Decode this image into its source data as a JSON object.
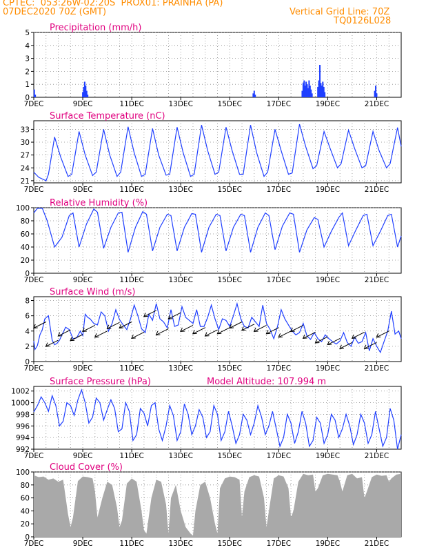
{
  "header": {
    "line1": "CPTEC:  053:26W-02:20S  PROX01: PRAINHA (PA)",
    "line2_left": "07DEC2020 70Z (GMT)",
    "line2_right": "Vertical Grid Line: 70Z",
    "line3_right": "TQ0126L028"
  },
  "colors": {
    "header": "#ff8c00",
    "title": "#e0007f",
    "series": "#1f3fff",
    "cloud": "#a9a9a9",
    "arrow": "#000000"
  },
  "x_axis": {
    "tick_labels": [
      "7DEC",
      "9DEC",
      "11DEC",
      "13DEC",
      "15DEC",
      "17DEC",
      "19DEC",
      "21DEC"
    ],
    "tick_days": [
      7,
      9,
      11,
      13,
      15,
      17,
      19,
      21
    ],
    "range_days": [
      7,
      22
    ]
  },
  "chart_data": [
    {
      "type": "bar",
      "title": "Precipitation  (mm/h)",
      "ylim": [
        0,
        5
      ],
      "yticks": [
        0,
        1,
        2,
        3,
        4,
        5
      ],
      "x_unit": "day of Dec 2020",
      "x": [
        7.02,
        7.06,
        9.0,
        9.04,
        9.08,
        9.12,
        9.16,
        9.2,
        15.96,
        16.0,
        16.04,
        17.96,
        18.0,
        18.04,
        18.08,
        18.12,
        18.16,
        18.2,
        18.24,
        18.28,
        18.32,
        18.36,
        18.6,
        18.64,
        18.68,
        18.72,
        18.76,
        18.8,
        18.84,
        18.88,
        20.92,
        20.96,
        21.0
      ],
      "values": [
        0.6,
        0.2,
        0.4,
        0.8,
        1.2,
        0.9,
        0.5,
        0.2,
        0.3,
        0.5,
        0.2,
        0.5,
        1.1,
        1.3,
        0.9,
        1.2,
        1.0,
        0.7,
        1.3,
        0.9,
        0.6,
        0.3,
        0.8,
        1.3,
        2.5,
        1.1,
        0.9,
        1.2,
        0.8,
        0.4,
        0.5,
        0.9,
        0.3
      ]
    },
    {
      "type": "line",
      "title": "Surface Temperature (nC)",
      "ylim": [
        20.5,
        35
      ],
      "yticks": [
        21,
        24,
        27,
        30,
        33
      ],
      "x_unit": "day of Dec 2020",
      "x": [
        7.0,
        7.2,
        7.5,
        7.6,
        7.85,
        8.1,
        8.4,
        8.55,
        8.85,
        9.1,
        9.4,
        9.55,
        9.85,
        10.1,
        10.4,
        10.55,
        10.85,
        11.1,
        11.4,
        11.55,
        11.85,
        12.1,
        12.4,
        12.55,
        12.85,
        13.1,
        13.4,
        13.55,
        13.85,
        14.1,
        14.4,
        14.55,
        14.85,
        15.1,
        15.4,
        15.55,
        15.85,
        16.1,
        16.4,
        16.55,
        16.85,
        17.1,
        17.4,
        17.55,
        17.85,
        18.1,
        18.4,
        18.55,
        18.85,
        19.1,
        19.4,
        19.55,
        19.85,
        20.1,
        20.4,
        20.55,
        20.85,
        21.1,
        21.4,
        21.55,
        21.85,
        22.0
      ],
      "values": [
        23.0,
        21.8,
        21.0,
        22.5,
        31.2,
        26.5,
        22.0,
        22.5,
        32.5,
        27.0,
        22.2,
        23.0,
        33.0,
        27.0,
        22.0,
        23.0,
        33.6,
        27.5,
        22.0,
        22.5,
        33.2,
        27.0,
        22.3,
        22.5,
        33.5,
        27.5,
        22.0,
        22.5,
        34.0,
        28.0,
        22.5,
        23.0,
        33.5,
        28.0,
        22.5,
        22.5,
        34.0,
        27.5,
        22.0,
        23.0,
        33.0,
        28.0,
        22.5,
        22.8,
        34.2,
        29.0,
        23.8,
        24.5,
        32.5,
        28.5,
        24.0,
        25.0,
        32.8,
        28.5,
        24.0,
        24.5,
        32.5,
        28.0,
        24.0,
        25.0,
        33.4,
        29.0
      ]
    },
    {
      "type": "line",
      "title": "Relative Humidity  (%)",
      "ylim": [
        0,
        100
      ],
      "yticks": [
        0,
        20,
        40,
        60,
        80,
        100
      ],
      "x_unit": "day of Dec 2020",
      "x": [
        7.0,
        7.15,
        7.35,
        7.55,
        7.85,
        8.15,
        8.45,
        8.6,
        8.85,
        9.15,
        9.45,
        9.6,
        9.85,
        10.15,
        10.45,
        10.6,
        10.85,
        11.15,
        11.45,
        11.6,
        11.85,
        12.15,
        12.45,
        12.6,
        12.85,
        13.15,
        13.45,
        13.6,
        13.85,
        14.15,
        14.45,
        14.6,
        14.85,
        15.15,
        15.45,
        15.6,
        15.85,
        16.15,
        16.45,
        16.6,
        16.85,
        17.15,
        17.45,
        17.6,
        17.85,
        18.15,
        18.45,
        18.6,
        18.85,
        19.15,
        19.45,
        19.6,
        19.85,
        20.15,
        20.45,
        20.6,
        20.85,
        21.15,
        21.45,
        21.6,
        21.85,
        22.0
      ],
      "values": [
        92,
        99,
        99,
        80,
        40,
        55,
        88,
        92,
        40,
        75,
        98,
        93,
        38,
        70,
        92,
        93,
        32,
        70,
        94,
        90,
        34,
        70,
        90,
        88,
        34,
        70,
        91,
        90,
        32,
        70,
        90,
        88,
        34,
        70,
        90,
        88,
        32,
        70,
        92,
        88,
        36,
        72,
        92,
        90,
        32,
        66,
        85,
        82,
        40,
        64,
        85,
        92,
        42,
        66,
        88,
        90,
        42,
        64,
        88,
        90,
        40,
        57
      ]
    },
    {
      "type": "line",
      "title": "Surface Wind  (m/s)",
      "ylim": [
        0,
        8.5
      ],
      "yticks": [
        0,
        2,
        4,
        6,
        8
      ],
      "x_unit": "day of Dec 2020",
      "x": [
        7.0,
        7.05,
        7.15,
        7.25,
        7.35,
        7.45,
        7.6,
        7.75,
        7.85,
        7.95,
        8.05,
        8.15,
        8.3,
        8.45,
        8.6,
        8.75,
        8.9,
        9.0,
        9.1,
        9.2,
        9.3,
        9.45,
        9.6,
        9.75,
        9.9,
        10.05,
        10.2,
        10.35,
        10.5,
        10.65,
        10.8,
        10.95,
        11.1,
        11.25,
        11.4,
        11.55,
        11.7,
        11.85,
        12.0,
        12.15,
        12.3,
        12.45,
        12.6,
        12.75,
        12.9,
        13.05,
        13.2,
        13.35,
        13.5,
        13.65,
        13.8,
        13.95,
        14.1,
        14.25,
        14.4,
        14.55,
        14.7,
        14.85,
        15.0,
        15.15,
        15.3,
        15.45,
        15.6,
        15.75,
        15.9,
        16.05,
        16.2,
        16.35,
        16.5,
        16.65,
        16.8,
        16.95,
        17.1,
        17.25,
        17.4,
        17.55,
        17.7,
        17.85,
        18.0,
        18.15,
        18.3,
        18.45,
        18.6,
        18.75,
        18.9,
        19.05,
        19.2,
        19.35,
        19.5,
        19.65,
        19.8,
        19.95,
        20.1,
        20.25,
        20.4,
        20.55,
        20.7,
        20.85,
        21.0,
        21.15,
        21.3,
        21.45,
        21.6,
        21.75,
        21.9,
        22.0
      ],
      "values": [
        2.7,
        1.6,
        2.1,
        3.5,
        4.2,
        5.6,
        6.0,
        2.8,
        2.2,
        2.4,
        2.8,
        3.5,
        4.5,
        4.2,
        3.0,
        3.1,
        4.0,
        3.4,
        6.2,
        5.8,
        5.6,
        5.0,
        4.8,
        6.5,
        6.0,
        4.0,
        5.0,
        6.8,
        5.5,
        4.8,
        4.2,
        5.6,
        7.4,
        6.0,
        4.3,
        3.8,
        6.2,
        5.4,
        7.6,
        5.6,
        5.2,
        4.4,
        6.8,
        4.6,
        4.8,
        7.2,
        5.8,
        5.4,
        5.0,
        6.8,
        4.6,
        4.6,
        5.8,
        7.4,
        5.6,
        4.2,
        5.6,
        5.4,
        4.6,
        6.0,
        7.6,
        5.6,
        4.6,
        4.4,
        5.8,
        5.2,
        4.6,
        7.4,
        5.0,
        4.2,
        3.0,
        4.6,
        6.8,
        5.6,
        4.8,
        4.0,
        3.5,
        3.8,
        5.0,
        3.4,
        2.9,
        3.8,
        3.0,
        2.6,
        3.5,
        3.0,
        2.6,
        2.3,
        2.7,
        3.8,
        2.5,
        2.0,
        3.2,
        2.4,
        2.6,
        3.8,
        1.4,
        3.0,
        2.0,
        1.2,
        2.6,
        4.0,
        6.6,
        3.6,
        4.0,
        3.0
      ]
    },
    {
      "type": "line",
      "title": "Surface Pressure (hPa)",
      "annotation": "Model Altitude: 107.994  m",
      "ylim": [
        992,
        1002.8
      ],
      "yticks": [
        992,
        994,
        996,
        998,
        1000,
        1002
      ],
      "x_unit": "day of Dec 2020",
      "x": [
        7.0,
        7.15,
        7.3,
        7.45,
        7.6,
        7.75,
        7.9,
        8.05,
        8.2,
        8.35,
        8.5,
        8.65,
        8.8,
        8.95,
        9.1,
        9.25,
        9.4,
        9.55,
        9.7,
        9.85,
        10.0,
        10.15,
        10.3,
        10.45,
        10.6,
        10.75,
        10.9,
        11.05,
        11.2,
        11.35,
        11.5,
        11.65,
        11.8,
        11.95,
        12.1,
        12.25,
        12.4,
        12.55,
        12.7,
        12.85,
        13.0,
        13.15,
        13.3,
        13.45,
        13.6,
        13.75,
        13.9,
        14.05,
        14.2,
        14.35,
        14.5,
        14.65,
        14.8,
        14.95,
        15.1,
        15.25,
        15.4,
        15.55,
        15.7,
        15.85,
        16.0,
        16.15,
        16.3,
        16.45,
        16.6,
        16.75,
        16.9,
        17.05,
        17.2,
        17.35,
        17.5,
        17.65,
        17.8,
        17.95,
        18.1,
        18.25,
        18.4,
        18.55,
        18.7,
        18.85,
        19.0,
        19.15,
        19.3,
        19.45,
        19.6,
        19.75,
        19.9,
        20.05,
        20.2,
        20.35,
        20.5,
        20.65,
        20.8,
        20.95,
        21.1,
        21.25,
        21.4,
        21.55,
        21.7,
        21.85,
        22.0
      ],
      "values": [
        998.4,
        999.5,
        1001.0,
        1000.0,
        998.5,
        1001.2,
        999.5,
        996.0,
        996.8,
        1000.0,
        999.5,
        997.8,
        1000.5,
        1002.2,
        1000.0,
        996.5,
        997.5,
        1000.8,
        1000.0,
        997.0,
        998.8,
        1000.5,
        999.0,
        995.0,
        995.5,
        1000.0,
        998.5,
        993.5,
        994.5,
        999.0,
        998.2,
        996.0,
        999.5,
        1000.0,
        995.5,
        993.5,
        996.0,
        999.5,
        997.8,
        993.5,
        995.0,
        999.8,
        998.0,
        994.5,
        996.0,
        998.8,
        997.5,
        994.0,
        995.0,
        999.5,
        998.0,
        993.5,
        995.0,
        998.5,
        996.0,
        993.0,
        994.5,
        998.0,
        997.0,
        994.5,
        996.5,
        999.5,
        997.5,
        994.5,
        996.0,
        998.5,
        995.5,
        992.5,
        994.0,
        998.0,
        996.5,
        993.0,
        995.0,
        998.5,
        996.5,
        992.5,
        993.5,
        997.5,
        996.5,
        993.0,
        994.5,
        998.0,
        997.0,
        994.0,
        995.5,
        998.0,
        996.0,
        992.8,
        994.5,
        998.0,
        996.5,
        993.0,
        994.5,
        998.5,
        995.5,
        992.5,
        994.0,
        999.0,
        997.0,
        992.0,
        994.5
      ]
    },
    {
      "type": "area",
      "title": "Cloud Cover  (%)",
      "ylim": [
        0,
        100
      ],
      "yticks": [
        0,
        20,
        40,
        60,
        80,
        100
      ],
      "x_unit": "day of Dec 2020",
      "x": [
        7.0,
        7.2,
        7.4,
        7.6,
        7.8,
        8.0,
        8.2,
        8.4,
        8.5,
        8.6,
        8.8,
        9.0,
        9.2,
        9.4,
        9.5,
        9.6,
        9.8,
        10.0,
        10.2,
        10.4,
        10.5,
        10.6,
        10.8,
        11.0,
        11.2,
        11.4,
        11.5,
        11.6,
        11.8,
        12.0,
        12.2,
        12.4,
        12.5,
        12.6,
        12.8,
        13.0,
        13.2,
        13.4,
        13.5,
        13.6,
        13.8,
        14.0,
        14.2,
        14.4,
        14.5,
        14.6,
        14.8,
        15.0,
        15.2,
        15.4,
        15.5,
        15.6,
        15.8,
        16.0,
        16.2,
        16.4,
        16.5,
        16.6,
        16.8,
        17.0,
        17.2,
        17.4,
        17.5,
        17.6,
        17.8,
        18.0,
        18.2,
        18.4,
        18.5,
        18.6,
        18.8,
        19.0,
        19.2,
        19.4,
        19.5,
        19.6,
        19.8,
        20.0,
        20.2,
        20.4,
        20.5,
        20.6,
        20.8,
        21.0,
        21.2,
        21.4,
        21.5,
        21.6,
        21.8,
        22.0
      ],
      "values": [
        95,
        92,
        93,
        88,
        90,
        85,
        88,
        35,
        15,
        30,
        86,
        93,
        92,
        90,
        70,
        30,
        60,
        85,
        80,
        45,
        15,
        25,
        82,
        90,
        85,
        40,
        10,
        5,
        60,
        88,
        85,
        50,
        5,
        60,
        80,
        40,
        15,
        5,
        2,
        40,
        80,
        85,
        60,
        20,
        5,
        75,
        90,
        93,
        92,
        88,
        30,
        70,
        92,
        95,
        93,
        60,
        15,
        40,
        90,
        95,
        93,
        75,
        30,
        40,
        85,
        97,
        95,
        96,
        70,
        75,
        95,
        97,
        96,
        95,
        85,
        70,
        95,
        97,
        90,
        92,
        60,
        70,
        92,
        96,
        94,
        95,
        85,
        90,
        96,
        97
      ]
    }
  ]
}
